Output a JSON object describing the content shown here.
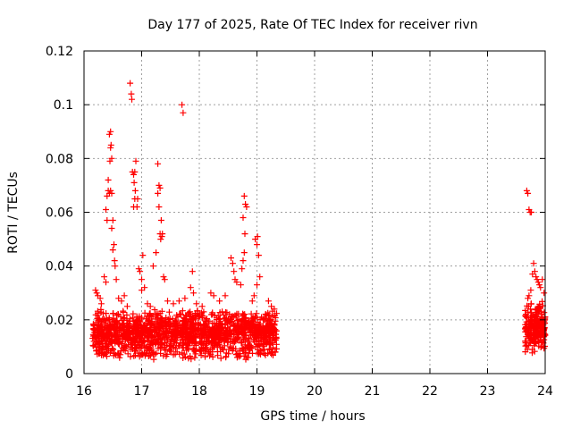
{
  "chart_data": {
    "type": "scatter",
    "title": "Day 177 of 2025, Rate Of TEC Index for receiver rivn",
    "xlabel": "GPS time / hours",
    "ylabel": "ROTI / TECUs",
    "xlim": [
      16,
      24
    ],
    "ylim": [
      0,
      0.12
    ],
    "x_ticks": [
      "16",
      "17",
      "18",
      "19",
      "20",
      "21",
      "22",
      "23",
      "24"
    ],
    "y_ticks": [
      "0",
      "0.02",
      "0.04",
      "0.06",
      "0.08",
      "0.1",
      "0.12"
    ],
    "grid": true,
    "marker": "+",
    "color": "#ff0000",
    "series": [
      {
        "name": "ROTI",
        "points": [
          [
            16.38,
            0.061
          ],
          [
            16.4,
            0.066
          ],
          [
            16.42,
            0.068
          ],
          [
            16.44,
            0.067
          ],
          [
            16.46,
            0.068
          ],
          [
            16.48,
            0.067
          ],
          [
            16.45,
            0.079
          ],
          [
            16.46,
            0.084
          ],
          [
            16.47,
            0.085
          ],
          [
            16.48,
            0.08
          ],
          [
            16.44,
            0.089
          ],
          [
            16.46,
            0.09
          ],
          [
            16.42,
            0.072
          ],
          [
            16.4,
            0.057
          ],
          [
            16.48,
            0.054
          ],
          [
            16.5,
            0.057
          ],
          [
            16.52,
            0.048
          ],
          [
            16.5,
            0.046
          ],
          [
            16.35,
            0.036
          ],
          [
            16.38,
            0.034
          ],
          [
            16.53,
            0.042
          ],
          [
            16.54,
            0.04
          ],
          [
            16.56,
            0.035
          ],
          [
            16.8,
            0.108
          ],
          [
            16.82,
            0.104
          ],
          [
            16.83,
            0.102
          ],
          [
            16.84,
            0.075
          ],
          [
            16.86,
            0.074
          ],
          [
            16.88,
            0.075
          ],
          [
            16.9,
            0.079
          ],
          [
            16.87,
            0.071
          ],
          [
            16.89,
            0.068
          ],
          [
            16.88,
            0.065
          ],
          [
            16.86,
            0.062
          ],
          [
            16.92,
            0.062
          ],
          [
            16.93,
            0.065
          ],
          [
            16.95,
            0.039
          ],
          [
            16.97,
            0.038
          ],
          [
            17.0,
            0.035
          ],
          [
            17.02,
            0.044
          ],
          [
            17.05,
            0.032
          ],
          [
            17.0,
            0.031
          ],
          [
            17.28,
            0.078
          ],
          [
            17.3,
            0.07
          ],
          [
            17.32,
            0.069
          ],
          [
            17.28,
            0.067
          ],
          [
            17.3,
            0.062
          ],
          [
            17.34,
            0.057
          ],
          [
            17.32,
            0.052
          ],
          [
            17.35,
            0.051
          ],
          [
            17.33,
            0.05
          ],
          [
            17.36,
            0.052
          ],
          [
            17.2,
            0.04
          ],
          [
            17.25,
            0.045
          ],
          [
            17.38,
            0.036
          ],
          [
            17.4,
            0.035
          ],
          [
            17.7,
            0.1
          ],
          [
            17.72,
            0.097
          ],
          [
            17.88,
            0.038
          ],
          [
            17.85,
            0.032
          ],
          [
            17.9,
            0.03
          ],
          [
            18.55,
            0.043
          ],
          [
            18.58,
            0.041
          ],
          [
            18.6,
            0.038
          ],
          [
            18.62,
            0.035
          ],
          [
            18.65,
            0.034
          ],
          [
            18.72,
            0.033
          ],
          [
            18.74,
            0.039
          ],
          [
            18.76,
            0.042
          ],
          [
            18.78,
            0.045
          ],
          [
            18.78,
            0.066
          ],
          [
            18.8,
            0.063
          ],
          [
            18.82,
            0.062
          ],
          [
            18.76,
            0.058
          ],
          [
            18.79,
            0.052
          ],
          [
            18.97,
            0.05
          ],
          [
            19.0,
            0.048
          ],
          [
            19.01,
            0.051
          ],
          [
            19.03,
            0.044
          ],
          [
            19.0,
            0.033
          ],
          [
            19.05,
            0.036
          ],
          [
            18.95,
            0.029
          ],
          [
            18.92,
            0.027
          ],
          [
            16.2,
            0.031
          ],
          [
            16.22,
            0.03
          ],
          [
            16.24,
            0.029
          ],
          [
            16.28,
            0.028
          ],
          [
            16.3,
            0.026
          ],
          [
            16.6,
            0.028
          ],
          [
            16.65,
            0.027
          ],
          [
            16.7,
            0.029
          ],
          [
            16.75,
            0.025
          ],
          [
            17.1,
            0.026
          ],
          [
            17.15,
            0.025
          ],
          [
            17.45,
            0.027
          ],
          [
            17.55,
            0.026
          ],
          [
            17.65,
            0.027
          ],
          [
            17.75,
            0.028
          ],
          [
            17.95,
            0.026
          ],
          [
            18.05,
            0.025
          ],
          [
            18.2,
            0.03
          ],
          [
            18.25,
            0.029
          ],
          [
            18.35,
            0.027
          ],
          [
            18.45,
            0.029
          ],
          [
            19.2,
            0.027
          ],
          [
            19.25,
            0.025
          ],
          [
            19.3,
            0.024
          ],
          [
            23.68,
            0.068
          ],
          [
            23.7,
            0.067
          ],
          [
            23.72,
            0.061
          ],
          [
            23.74,
            0.06
          ],
          [
            23.76,
            0.06
          ],
          [
            23.8,
            0.041
          ],
          [
            23.82,
            0.038
          ],
          [
            23.78,
            0.037
          ],
          [
            23.84,
            0.036
          ],
          [
            23.86,
            0.035
          ],
          [
            23.88,
            0.034
          ],
          [
            23.9,
            0.033
          ],
          [
            23.92,
            0.032
          ],
          [
            23.95,
            0.035
          ],
          [
            23.98,
            0.03
          ],
          [
            23.75,
            0.031
          ],
          [
            23.72,
            0.029
          ],
          [
            23.7,
            0.028
          ]
        ],
        "bands": [
          {
            "x_start": 16.15,
            "x_end": 19.35,
            "y_low": 0.007,
            "y_high": 0.024,
            "count": 1500
          },
          {
            "x_start": 16.15,
            "x_end": 19.35,
            "y_low": 0.005,
            "y_high": 0.01,
            "count": 120
          },
          {
            "x_start": 23.65,
            "x_end": 24.0,
            "y_low": 0.007,
            "y_high": 0.027,
            "count": 260
          }
        ]
      }
    ]
  }
}
